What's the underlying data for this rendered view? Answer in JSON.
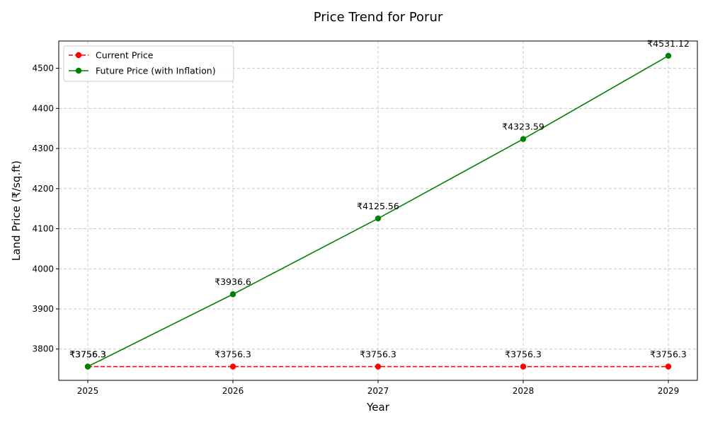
{
  "chart_data": {
    "type": "line",
    "title": "Price Trend for Porur",
    "xlabel": "Year",
    "ylabel": "Land Price (₹/sq.ft)",
    "x": [
      2025,
      2026,
      2027,
      2028,
      2029
    ],
    "x_tick_labels": [
      "2025",
      "2026",
      "2027",
      "2028",
      "2029"
    ],
    "xlim": [
      2024.8,
      2029.2
    ],
    "ylim": [
      3722,
      4568
    ],
    "y_ticks": [
      3800,
      3900,
      4000,
      4100,
      4200,
      4300,
      4400,
      4500
    ],
    "grid": true,
    "legend_position": "upper-left",
    "series": [
      {
        "name": "Current Price",
        "color": "#ff0000",
        "line_style": "dashed",
        "marker": "circle",
        "values": [
          3756.3,
          3756.3,
          3756.3,
          3756.3,
          3756.3
        ],
        "data_labels": [
          "₹3756.3",
          "₹3756.3",
          "₹3756.3",
          "₹3756.3",
          "₹3756.3"
        ]
      },
      {
        "name": "Future Price (with Inflation)",
        "color": "#008000",
        "line_style": "solid",
        "marker": "circle",
        "values": [
          3756.3,
          3936.6,
          4125.56,
          4323.59,
          4531.12
        ],
        "data_labels": [
          "₹3756.3",
          "₹3936.6",
          "₹4125.56",
          "₹4323.59",
          "₹4531.12"
        ]
      }
    ]
  }
}
